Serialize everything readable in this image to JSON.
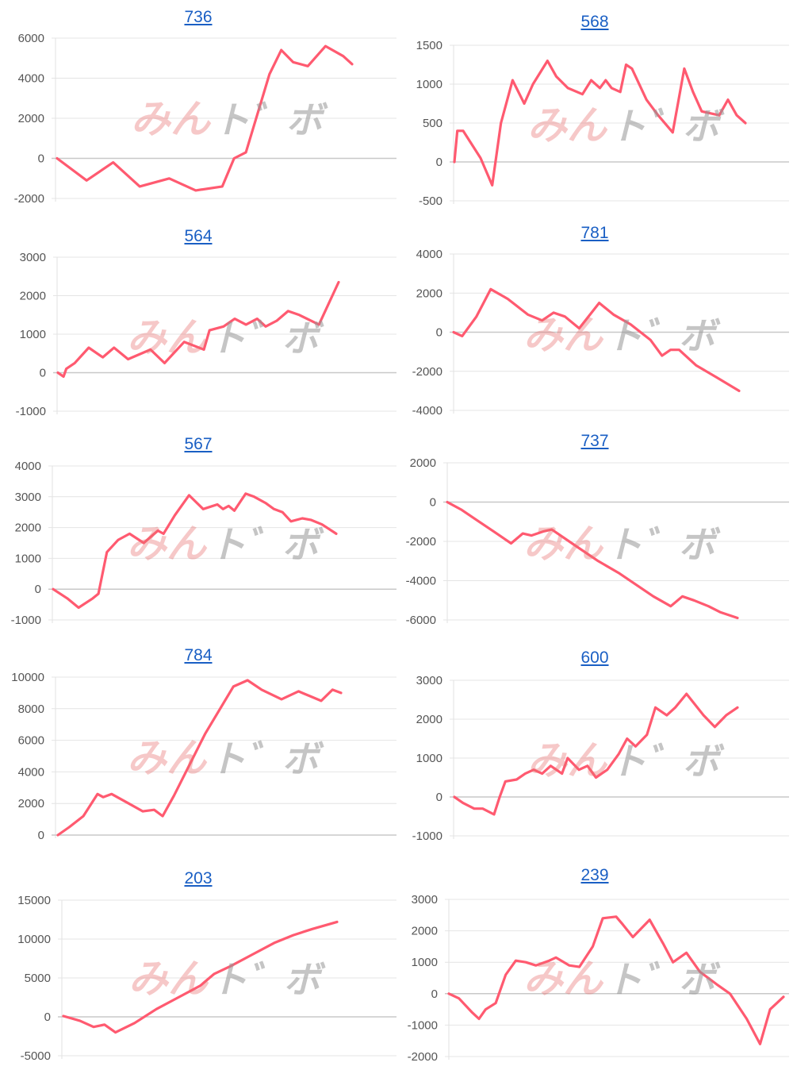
{
  "colors": {
    "line": "#ff5a70",
    "title": "#1a5fc4"
  },
  "watermark": {
    "part_a": "みん",
    "part_b": "ト゛ボ"
  },
  "chart_data": [
    {
      "type": "line",
      "title": "736",
      "yticks": [
        6000,
        4000,
        2000,
        0,
        -2000
      ],
      "ylim": [
        -2000,
        6000
      ],
      "x": [
        0,
        10,
        19,
        28,
        38,
        47,
        56,
        60,
        64,
        72,
        76,
        80,
        85,
        91,
        97,
        100
      ],
      "y": [
        0,
        -1100,
        -200,
        -1400,
        -1000,
        -1600,
        -1400,
        0,
        300,
        4200,
        5400,
        4800,
        4600,
        5600,
        5100,
        4700
      ]
    },
    {
      "type": "line",
      "title": "568",
      "yticks": [
        1500,
        1000,
        500,
        0,
        -500
      ],
      "ylim": [
        -500,
        1500
      ],
      "x": [
        0,
        1,
        3,
        9,
        13,
        16,
        20,
        24,
        27,
        32,
        35,
        39,
        44,
        47,
        50,
        52,
        54,
        57,
        59,
        61,
        66,
        70,
        75,
        79,
        82,
        85,
        91,
        94,
        97,
        100
      ],
      "y": [
        0,
        400,
        400,
        50,
        -300,
        500,
        1050,
        750,
        1000,
        1300,
        1100,
        950,
        870,
        1050,
        950,
        1050,
        950,
        900,
        1250,
        1200,
        800,
        600,
        380,
        1200,
        900,
        650,
        600,
        800,
        600,
        500
      ]
    },
    {
      "type": "line",
      "title": "564",
      "yticks": [
        3000,
        2000,
        1000,
        0,
        -1000
      ],
      "ylim": [
        -1000,
        3000
      ],
      "x": [
        0,
        2,
        3,
        6,
        11,
        16,
        20,
        25,
        33,
        38,
        45,
        52,
        54,
        59,
        63,
        67,
        71,
        74,
        78,
        82,
        86,
        93,
        100
      ],
      "y": [
        0,
        -100,
        100,
        250,
        650,
        400,
        650,
        350,
        600,
        250,
        800,
        600,
        1100,
        1200,
        1400,
        1250,
        1400,
        1200,
        1350,
        1600,
        1500,
        1250,
        2350
      ]
    },
    {
      "type": "line",
      "title": "781",
      "yticks": [
        4000,
        2000,
        0,
        -2000,
        -4000
      ],
      "ylim": [
        -4000,
        4000
      ],
      "x": [
        0,
        3,
        8,
        13,
        19,
        26,
        31,
        35,
        39,
        44,
        51,
        56,
        62,
        69,
        73,
        76,
        79,
        85,
        92,
        100
      ],
      "y": [
        0,
        -200,
        800,
        2200,
        1700,
        900,
        600,
        1000,
        800,
        200,
        1500,
        900,
        400,
        -400,
        -1200,
        -900,
        -900,
        -1700,
        -2300,
        -3000
      ]
    },
    {
      "type": "line",
      "title": "567",
      "yticks": [
        4000,
        3000,
        2000,
        1000,
        0,
        -1000
      ],
      "ylim": [
        -1000,
        4000
      ],
      "x": [
        0,
        5,
        9,
        14,
        16,
        19,
        23,
        27,
        32,
        37,
        39,
        43,
        48,
        53,
        58,
        60,
        62,
        64,
        68,
        71,
        75,
        78,
        81,
        84,
        88,
        91,
        95,
        100
      ],
      "y": [
        0,
        -300,
        -600,
        -300,
        -150,
        1200,
        1600,
        1800,
        1500,
        1900,
        1800,
        2400,
        3050,
        2600,
        2750,
        2600,
        2700,
        2550,
        3100,
        3000,
        2800,
        2600,
        2500,
        2200,
        2300,
        2250,
        2100,
        1800
      ]
    },
    {
      "type": "line",
      "title": "737",
      "yticks": [
        2000,
        0,
        -2000,
        -4000,
        -6000
      ],
      "ylim": [
        -6000,
        2000
      ],
      "x": [
        0,
        5,
        10,
        16,
        22,
        26,
        29,
        33,
        36,
        44,
        52,
        59,
        66,
        71,
        77,
        81,
        85,
        90,
        94,
        100
      ],
      "y": [
        0,
        -400,
        -900,
        -1500,
        -2100,
        -1600,
        -1700,
        -1500,
        -1400,
        -2200,
        -3000,
        -3600,
        -4300,
        -4800,
        -5300,
        -4800,
        -5000,
        -5300,
        -5600,
        -5900
      ]
    },
    {
      "type": "line",
      "title": "784",
      "yticks": [
        10000,
        8000,
        6000,
        4000,
        2000,
        0
      ],
      "ylim": [
        0,
        10000
      ],
      "x": [
        0,
        4,
        9,
        14,
        16,
        19,
        25,
        30,
        34,
        37,
        41,
        52,
        62,
        67,
        72,
        79,
        85,
        89,
        93,
        97,
        100
      ],
      "y": [
        0,
        500,
        1200,
        2600,
        2400,
        2600,
        2000,
        1500,
        1600,
        1200,
        2500,
        6400,
        9400,
        9800,
        9200,
        8600,
        9100,
        8800,
        8500,
        9200,
        9000
      ]
    },
    {
      "type": "line",
      "title": "600",
      "yticks": [
        3000,
        2000,
        1000,
        0,
        -1000
      ],
      "ylim": [
        -1000,
        3000
      ],
      "x": [
        0,
        3,
        7,
        10,
        14,
        16,
        18,
        22,
        25,
        28,
        31,
        34,
        38,
        40,
        44,
        47,
        50,
        54,
        58,
        61,
        64,
        68,
        71,
        75,
        78,
        82,
        88,
        92,
        96,
        100
      ],
      "y": [
        0,
        -150,
        -300,
        -300,
        -450,
        0,
        400,
        450,
        600,
        700,
        600,
        800,
        600,
        1000,
        700,
        800,
        500,
        700,
        1100,
        1500,
        1300,
        1600,
        2300,
        2100,
        2300,
        2650,
        2100,
        1800,
        2100,
        2300
      ]
    },
    {
      "type": "line",
      "title": "203",
      "yticks": [
        15000,
        10000,
        5000,
        0,
        -5000
      ],
      "ylim": [
        -5000,
        15000
      ],
      "x": [
        0,
        6,
        11,
        15,
        19,
        26,
        34,
        42,
        50,
        55,
        61,
        69,
        77,
        84,
        91,
        100
      ],
      "y": [
        100,
        -500,
        -1300,
        -1000,
        -2000,
        -800,
        1000,
        2500,
        4000,
        5500,
        6500,
        8000,
        9500,
        10500,
        11300,
        12200
      ]
    },
    {
      "type": "line",
      "title": "239",
      "yticks": [
        3000,
        2000,
        1000,
        0,
        -1000,
        -2000
      ],
      "ylim": [
        -2000,
        3000
      ],
      "x": [
        0,
        3,
        7,
        9,
        11,
        14,
        17,
        20,
        23,
        26,
        30,
        32,
        36,
        39,
        43,
        46,
        50,
        52,
        55,
        60,
        64,
        67,
        71,
        75,
        80,
        84,
        89,
        93,
        96,
        98,
        100
      ],
      "y": [
        0,
        -150,
        -600,
        -800,
        -500,
        -300,
        600,
        1050,
        1000,
        900,
        1050,
        1150,
        900,
        850,
        1500,
        2400,
        2450,
        2200,
        1800,
        2350,
        1600,
        1000,
        1300,
        700,
        300,
        0,
        -800,
        -1600,
        -500,
        -300,
        -100
      ]
    }
  ]
}
